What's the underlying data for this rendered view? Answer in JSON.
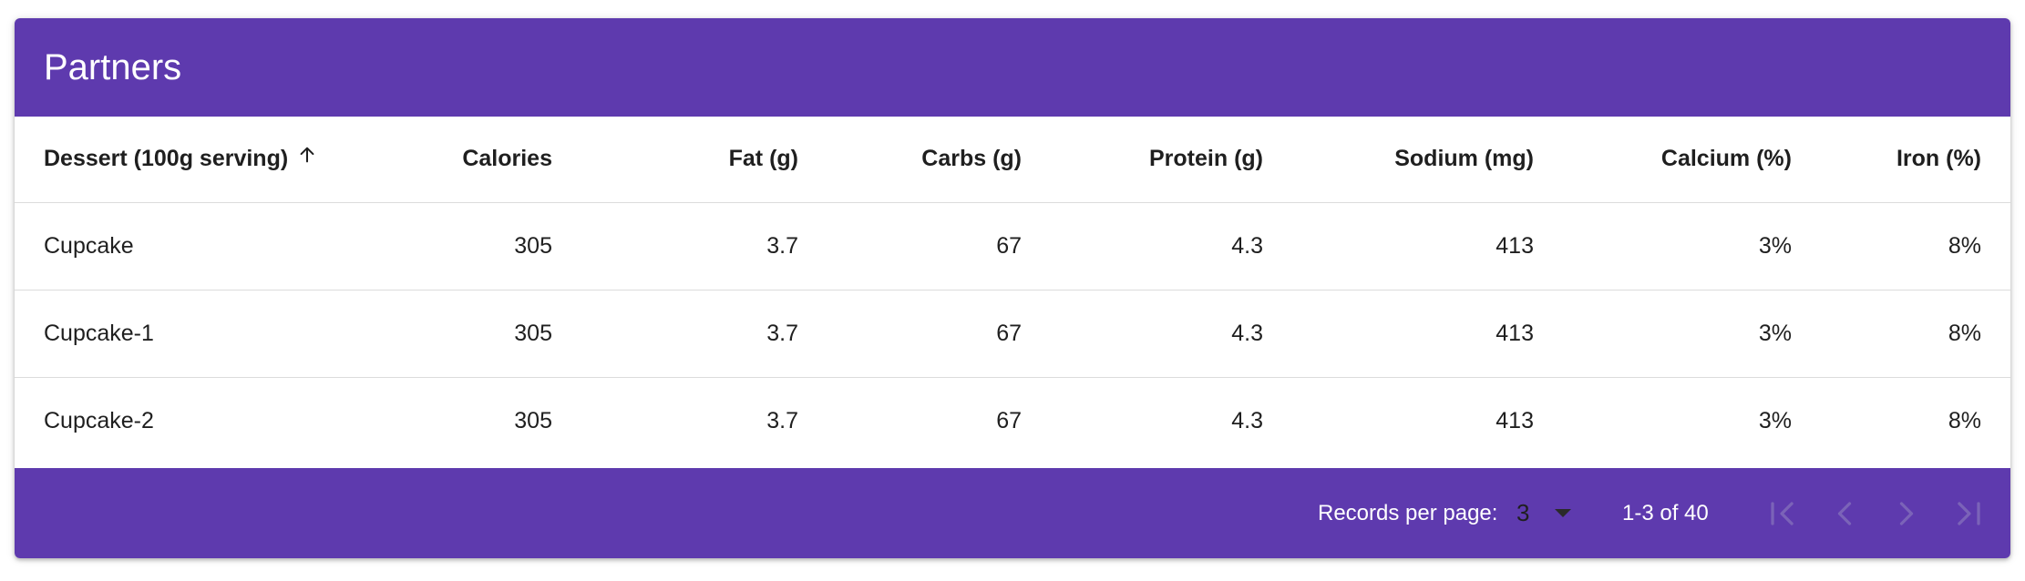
{
  "header": {
    "title": "Partners"
  },
  "columns": [
    {
      "label": "Dessert (100g serving)",
      "sorted": "ascending",
      "sort_icon": "arrow-up-icon"
    },
    {
      "label": "Calories"
    },
    {
      "label": "Fat (g)"
    },
    {
      "label": "Carbs (g)"
    },
    {
      "label": "Protein (g)"
    },
    {
      "label": "Sodium (mg)"
    },
    {
      "label": "Calcium (%)"
    },
    {
      "label": "Iron (%)"
    }
  ],
  "rows": [
    {
      "name": "Cupcake",
      "calories": "305",
      "fat": "3.7",
      "carbs": "67",
      "protein": "4.3",
      "sodium": "413",
      "calcium": "3%",
      "iron": "8%"
    },
    {
      "name": "Cupcake-1",
      "calories": "305",
      "fat": "3.7",
      "carbs": "67",
      "protein": "4.3",
      "sodium": "413",
      "calcium": "3%",
      "iron": "8%"
    },
    {
      "name": "Cupcake-2",
      "calories": "305",
      "fat": "3.7",
      "carbs": "67",
      "protein": "4.3",
      "sodium": "413",
      "calcium": "3%",
      "iron": "8%"
    }
  ],
  "pagination": {
    "records_per_page_label": "Records per page:",
    "records_per_page_value": "3",
    "range_text": "1-3 of 40",
    "buttons": [
      "first-page-icon",
      "previous-page-icon",
      "next-page-icon",
      "last-page-icon"
    ]
  },
  "colors": {
    "header_bg": "#5e3aae",
    "footer_bg": "#5e3aae",
    "header_text": "#ffffff",
    "disabled_icon": "#7b63b8",
    "row_divider": "#dcdcdc"
  }
}
